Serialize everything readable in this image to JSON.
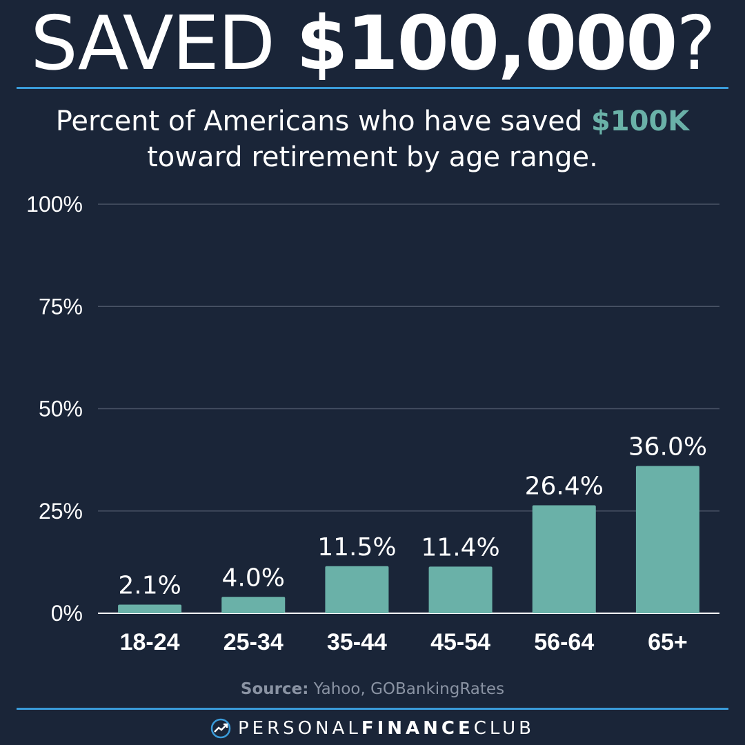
{
  "headline": {
    "light": "SAVED ",
    "bold": "$100,000",
    "end": "?"
  },
  "subtitle": {
    "line1_prefix": "Percent of Americans who have saved ",
    "line1_highlight": "$100K",
    "line2": "toward retirement by age range."
  },
  "source": {
    "label": "Source:",
    "text": " Yahoo, GOBankingRates"
  },
  "footer": {
    "part1": "PERSONAL",
    "part2": "FINANCE",
    "part3": "CLUB",
    "logo_icon": "trend-arrow-icon"
  },
  "colors": {
    "background": "#1a2538",
    "bar": "#6ab1a8",
    "rule": "#3a9bd9",
    "gridline": "#4a5466",
    "text": "#ffffff",
    "source": "#8a93a3"
  },
  "chart_data": {
    "type": "bar",
    "categories": [
      "18-24",
      "25-34",
      "35-44",
      "45-54",
      "56-64",
      "65+"
    ],
    "values": [
      2.1,
      4.0,
      11.5,
      11.4,
      26.4,
      36.0
    ],
    "value_labels": [
      "2.1%",
      "4.0%",
      "11.5%",
      "11.4%",
      "26.4%",
      "36.0%"
    ],
    "yticks": [
      0,
      25,
      50,
      75,
      100
    ],
    "ytick_labels": [
      "0%",
      "25%",
      "50%",
      "75%",
      "100%"
    ],
    "ylim": [
      0,
      100
    ],
    "grid": true,
    "title": "Percent of Americans who have saved $100K toward retirement by age range.",
    "xlabel": "",
    "ylabel": ""
  }
}
